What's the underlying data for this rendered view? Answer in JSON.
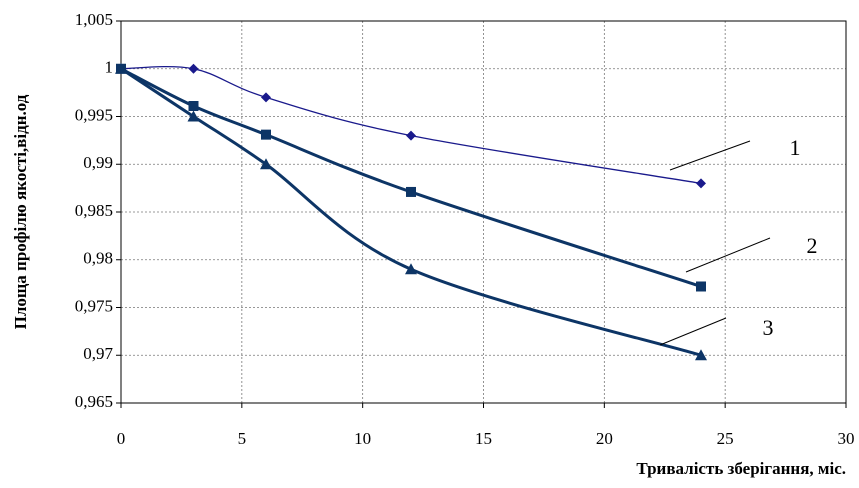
{
  "chart_data": {
    "type": "line",
    "x_label": "Тривалість зберігання, міс.",
    "y_label": "Площа профілю якості,відн.од",
    "x": [
      0,
      3,
      6,
      12,
      24
    ],
    "series": [
      {
        "name": "1",
        "color": "#1a1a8c",
        "marker": "diamond",
        "values": [
          1,
          1,
          0.997,
          0.993,
          0.988
        ]
      },
      {
        "name": "2",
        "color": "#0d3566",
        "marker": "square",
        "values": [
          1,
          0.9961,
          0.9931,
          0.9871,
          0.9772
        ]
      },
      {
        "name": "3",
        "color": "#0d3566",
        "marker": "triangle",
        "values": [
          1,
          0.995,
          0.99,
          0.979,
          0.97
        ]
      }
    ],
    "xlim": [
      0,
      30
    ],
    "xticks": [
      0,
      5,
      10,
      15,
      20,
      25,
      30
    ],
    "ylim": [
      0.965,
      1.005
    ],
    "yticks": [
      {
        "value": 0.965,
        "label": "0,965"
      },
      {
        "value": 0.97,
        "label": "0,97"
      },
      {
        "value": 0.975,
        "label": "0,975"
      },
      {
        "value": 0.98,
        "label": "0,98"
      },
      {
        "value": 0.985,
        "label": "0,985"
      },
      {
        "value": 0.99,
        "label": "0,99"
      },
      {
        "value": 0.995,
        "label": "0,995"
      },
      1,
      {
        "value": 1.005,
        "label": "1,005"
      }
    ],
    "grid": true
  }
}
